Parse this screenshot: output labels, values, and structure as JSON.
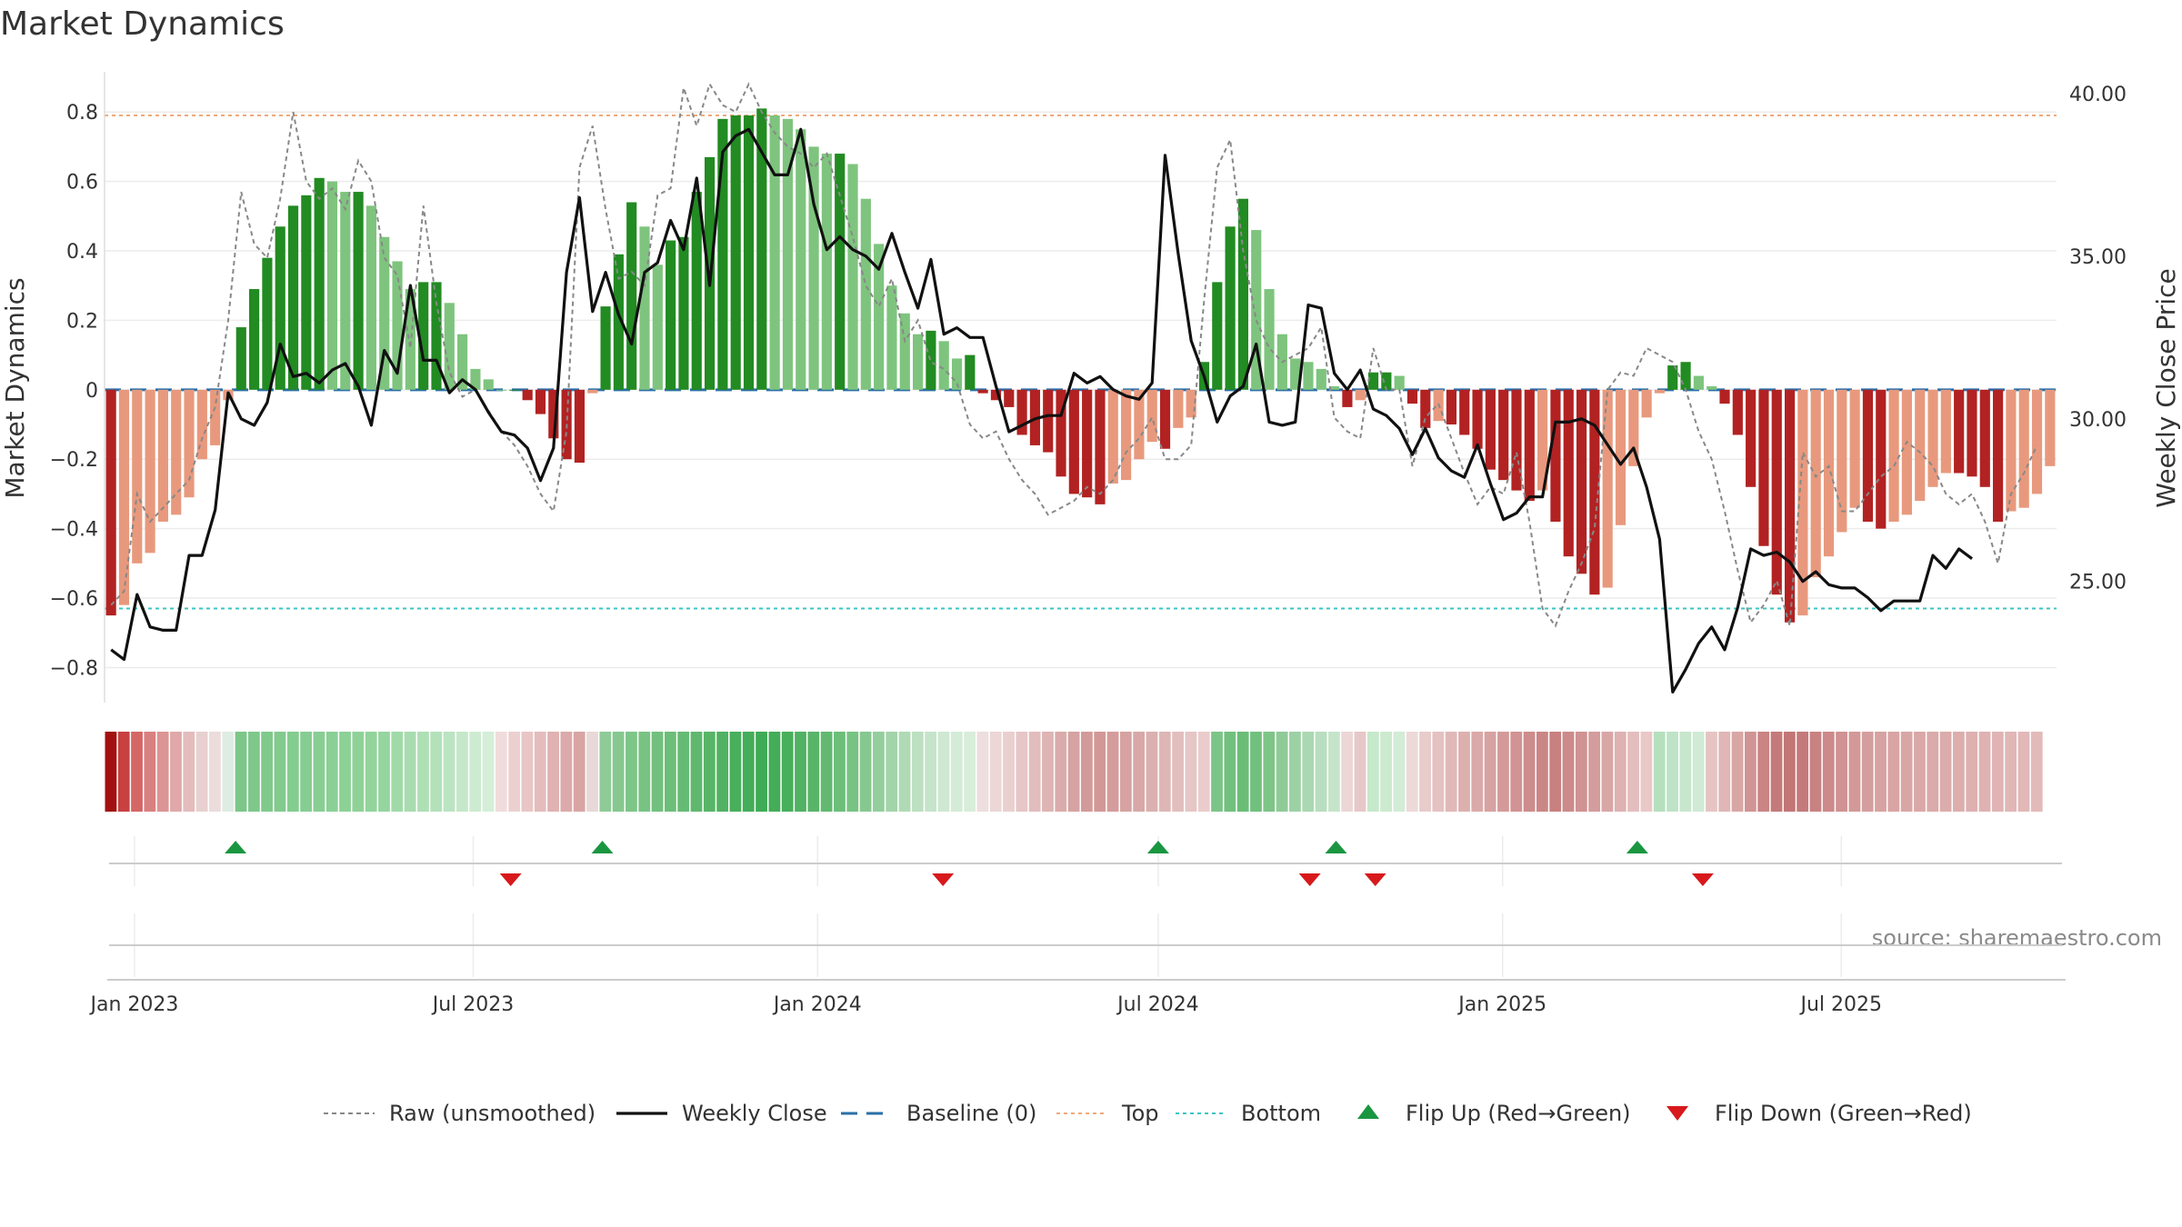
{
  "chart_data": {
    "type": "bar",
    "title": "Market Dynamics",
    "ylabel_left": "Market Dynamics",
    "ylabel_right": "Weekly Close Price",
    "ylim_left": [
      -0.88,
      0.9
    ],
    "ylim_right": [
      21.5,
      40.5
    ],
    "yticks_left": [
      {
        "value": 0.8,
        "label": "0.8"
      },
      {
        "value": 0.6,
        "label": "0.6"
      },
      {
        "value": 0.4,
        "label": "0.4"
      },
      {
        "value": 0.2,
        "label": "0.2"
      },
      {
        "value": 0,
        "label": "0"
      },
      {
        "value": -0.2,
        "label": "−0.2"
      },
      {
        "value": -0.4,
        "label": "−0.4"
      },
      {
        "value": -0.6,
        "label": "−0.6"
      },
      {
        "value": -0.8,
        "label": "−0.8"
      }
    ],
    "yticks_right": [
      {
        "value": 40,
        "label": "40.00"
      },
      {
        "value": 35,
        "label": "35.00"
      },
      {
        "value": 30,
        "label": "30.00"
      },
      {
        "value": 25,
        "label": "25.00"
      }
    ],
    "xticks": [
      {
        "date": "2023-01-01",
        "label": "Jan 2023"
      },
      {
        "date": "2023-07-01",
        "label": "Jul 2023"
      },
      {
        "date": "2024-01-01",
        "label": "Jan 2024"
      },
      {
        "date": "2024-07-01",
        "label": "Jul 2024"
      },
      {
        "date": "2025-01-01",
        "label": "Jan 2025"
      },
      {
        "date": "2025-07-01",
        "label": "Jul 2025"
      }
    ],
    "date_range": [
      "2022-12-16",
      "2025-10-24"
    ],
    "top_level": 0.79,
    "bottom_level": -0.63,
    "baseline": 0,
    "dynamics": [
      -0.65,
      -0.62,
      -0.5,
      -0.47,
      -0.38,
      -0.36,
      -0.31,
      -0.2,
      -0.16,
      -0.03,
      0.18,
      0.29,
      0.38,
      0.47,
      0.53,
      0.56,
      0.61,
      0.6,
      0.57,
      0.57,
      0.53,
      0.44,
      0.37,
      0.29,
      0.31,
      0.31,
      0.25,
      0.16,
      0.06,
      0.03,
      0.0,
      0.0,
      -0.03,
      -0.07,
      -0.14,
      -0.2,
      -0.21,
      -0.01,
      0.24,
      0.39,
      0.54,
      0.47,
      0.36,
      0.43,
      0.44,
      0.57,
      0.67,
      0.78,
      0.79,
      0.79,
      0.81,
      0.79,
      0.78,
      0.75,
      0.7,
      0.68,
      0.68,
      0.65,
      0.55,
      0.42,
      0.3,
      0.22,
      0.16,
      0.17,
      0.14,
      0.09,
      0.1,
      -0.01,
      -0.03,
      -0.05,
      -0.13,
      -0.16,
      -0.18,
      -0.25,
      -0.3,
      -0.31,
      -0.33,
      -0.27,
      -0.26,
      -0.2,
      -0.15,
      -0.17,
      -0.11,
      -0.08,
      0.08,
      0.31,
      0.47,
      0.55,
      0.46,
      0.29,
      0.16,
      0.09,
      0.08,
      0.06,
      0.01,
      -0.05,
      -0.03,
      0.05,
      0.05,
      0.04,
      -0.04,
      -0.11,
      -0.09,
      -0.1,
      -0.13,
      -0.17,
      -0.23,
      -0.26,
      -0.29,
      -0.32,
      -0.29,
      -0.38,
      -0.48,
      -0.53,
      -0.59,
      -0.57,
      -0.39,
      -0.22,
      -0.08,
      -0.01,
      0.07,
      0.08,
      0.04,
      0.01,
      -0.04,
      -0.13,
      -0.28,
      -0.45,
      -0.59,
      -0.67,
      -0.65,
      -0.54,
      -0.48,
      -0.41,
      -0.34,
      -0.38,
      -0.4,
      -0.38,
      -0.36,
      -0.32,
      -0.28,
      -0.24,
      -0.24,
      -0.25,
      -0.28,
      -0.38,
      -0.35,
      -0.34,
      -0.3,
      -0.22
    ],
    "raw": [
      -0.62,
      -0.58,
      -0.3,
      -0.38,
      -0.34,
      -0.3,
      -0.26,
      -0.14,
      -0.05,
      0.2,
      0.57,
      0.42,
      0.38,
      0.55,
      0.8,
      0.6,
      0.55,
      0.58,
      0.52,
      0.66,
      0.6,
      0.38,
      0.33,
      0.12,
      0.53,
      0.25,
      0.05,
      -0.02,
      0.0,
      -0.06,
      -0.12,
      -0.16,
      -0.22,
      -0.3,
      -0.35,
      -0.12,
      0.64,
      0.76,
      0.52,
      0.32,
      0.34,
      0.3,
      0.56,
      0.58,
      0.87,
      0.76,
      0.88,
      0.82,
      0.8,
      0.88,
      0.8,
      0.74,
      0.7,
      0.68,
      0.64,
      0.68,
      0.56,
      0.44,
      0.3,
      0.24,
      0.32,
      0.14,
      0.2,
      0.08,
      0.06,
      0.02,
      -0.1,
      -0.14,
      -0.12,
      -0.2,
      -0.26,
      -0.3,
      -0.36,
      -0.34,
      -0.32,
      -0.28,
      -0.3,
      -0.26,
      -0.18,
      -0.14,
      -0.08,
      -0.2,
      -0.2,
      -0.16,
      0.26,
      0.64,
      0.72,
      0.4,
      0.2,
      0.12,
      0.08,
      0.1,
      0.12,
      0.18,
      -0.08,
      -0.12,
      -0.14,
      0.12,
      0.0,
      0.0,
      -0.22,
      -0.08,
      -0.04,
      -0.14,
      -0.24,
      -0.33,
      -0.28,
      -0.3,
      -0.18,
      -0.38,
      -0.63,
      -0.68,
      -0.58,
      -0.5,
      -0.4,
      0.0,
      0.05,
      0.04,
      0.12,
      0.1,
      0.08,
      0.0,
      -0.12,
      -0.2,
      -0.35,
      -0.52,
      -0.67,
      -0.62,
      -0.55,
      -0.68,
      -0.18,
      -0.25,
      -0.22,
      -0.35,
      -0.35,
      -0.3,
      -0.25,
      -0.22,
      -0.15,
      -0.18,
      -0.22,
      -0.3,
      -0.33,
      -0.3,
      -0.38,
      -0.5,
      -0.3,
      -0.24,
      -0.16
    ],
    "close": [
      22.9,
      22.6,
      24.6,
      23.6,
      23.5,
      23.5,
      25.8,
      25.8,
      27.2,
      30.8,
      30.0,
      29.8,
      30.5,
      32.3,
      31.3,
      31.4,
      31.1,
      31.5,
      31.7,
      31.0,
      29.8,
      32.1,
      31.4,
      34.1,
      31.8,
      31.8,
      30.8,
      31.2,
      30.9,
      30.2,
      29.6,
      29.5,
      29.1,
      28.1,
      29.1,
      34.5,
      36.8,
      33.3,
      34.5,
      33.2,
      32.3,
      34.5,
      34.8,
      36.1,
      35.2,
      37.4,
      34.1,
      38.2,
      38.7,
      38.9,
      38.2,
      37.5,
      37.5,
      38.9,
      36.6,
      35.2,
      35.6,
      35.2,
      35.0,
      34.6,
      35.7,
      34.5,
      33.4,
      34.9,
      32.6,
      32.8,
      32.5,
      32.5,
      31.0,
      29.6,
      29.8,
      30.0,
      30.1,
      30.1,
      31.4,
      31.1,
      31.3,
      30.9,
      30.7,
      30.6,
      31.1,
      38.1,
      35.1,
      32.4,
      31.3,
      29.9,
      30.7,
      31.0,
      32.3,
      29.9,
      29.8,
      29.9,
      33.5,
      33.4,
      31.4,
      30.9,
      31.5,
      30.3,
      30.1,
      29.7,
      28.9,
      29.7,
      28.8,
      28.4,
      28.2,
      29.2,
      28.0,
      26.9,
      27.1,
      27.6,
      27.6,
      29.9,
      29.9,
      30.0,
      29.8,
      29.2,
      28.6,
      29.1,
      27.9,
      26.3,
      21.6,
      22.3,
      23.1,
      23.6,
      22.9,
      24.2,
      26.0,
      25.8,
      25.9,
      25.6,
      25.0,
      25.3,
      24.9,
      24.8,
      24.8,
      24.5,
      24.1,
      24.4,
      24.4,
      24.4,
      25.8,
      25.4,
      26.0,
      25.7
    ],
    "zone_colors": [
      "#a31010",
      "#c84040",
      "#d56666",
      "#d98080",
      "#dc9494",
      "#e0a8a8",
      "#e4bcbc",
      "#e8d0d0",
      "#ecdcdc",
      "#dfece3",
      "#7cc688",
      "#7ec88a",
      "#80c98c",
      "#82ca8e",
      "#84cc90",
      "#86cd92",
      "#88ce94",
      "#8ad095",
      "#8cd196",
      "#8fd298",
      "#92d49b",
      "#95d59e",
      "#a0daa8",
      "#a8dcb0",
      "#aedfb5",
      "#b3e1ba",
      "#bbe4c1",
      "#c4e8c9",
      "#cdebd1",
      "#d5eed8",
      "#f0dcdc",
      "#ecd0d0",
      "#e8c6c6",
      "#e4bcbc",
      "#e0b2b2",
      "#dcaaaa",
      "#d8a4a4",
      "#e8d8d8",
      "#8ecb97",
      "#86c890",
      "#7ec588",
      "#78c383",
      "#72c07e",
      "#6cbe79",
      "#66bb74",
      "#5fb86e",
      "#58b568",
      "#50b262",
      "#48af5c",
      "#44ad59",
      "#40ab56",
      "#44ad59",
      "#48af5c",
      "#50b262",
      "#58b568",
      "#62b96f",
      "#6cbe79",
      "#78c383",
      "#86c890",
      "#94ce9d",
      "#a2d4aa",
      "#b0dab6",
      "#bce0c1",
      "#c6e4ca",
      "#cee8d2",
      "#d4ebd7",
      "#d8edda",
      "#eedede",
      "#ecd6d6",
      "#eacfcf",
      "#e6c6c6",
      "#e2bdbd",
      "#deb4b4",
      "#daabab",
      "#d6a2a2",
      "#d39a9a",
      "#d29898",
      "#d49c9c",
      "#d6a2a2",
      "#d8a8a8",
      "#dbb0b0",
      "#deb6b6",
      "#e2bebe",
      "#e6c6c6",
      "#eacccc",
      "#7cc588",
      "#72c07e",
      "#6abd77",
      "#72c07e",
      "#7ec588",
      "#8ecb97",
      "#9cd1a5",
      "#aad8b2",
      "#b8debf",
      "#c6e4ca",
      "#ecd6d6",
      "#e6c8c8",
      "#c6e8cb",
      "#cceace",
      "#d2ecd5",
      "#eed9d9",
      "#e8cbcb",
      "#e4c2c2",
      "#e0b8b8",
      "#ddb0b0",
      "#daa9a9",
      "#d7a2a2",
      "#d49a9a",
      "#d19393",
      "#ce8c8c",
      "#cb8686",
      "#c88080",
      "#cc8a8a",
      "#d09292",
      "#d49c9c",
      "#d9a6a6",
      "#deb2b2",
      "#e4bebe",
      "#e9c8c8",
      "#b6dfbe",
      "#bfe3c6",
      "#c8e6cd",
      "#d0ead5",
      "#e6c4c4",
      "#e0b6b6",
      "#d9a6a6",
      "#d19494",
      "#ca8484",
      "#c47a7a",
      "#c27676",
      "#c47a7a",
      "#c88282",
      "#cc8a8a",
      "#d09292",
      "#d39898",
      "#d59e9e",
      "#d7a2a2",
      "#d8a4a4",
      "#d9a6a6",
      "#daa8a8",
      "#dbaaaa",
      "#dcacac",
      "#ddaeae",
      "#deb0b0",
      "#dfb2b2",
      "#e0b4b4",
      "#e1b6b6",
      "#e2b8b8",
      "#e3baba"
    ],
    "flip_up_dates": [
      "2023-02-24",
      "2023-09-08",
      "2024-07-01",
      "2024-10-04",
      "2025-03-14"
    ],
    "flip_down_dates": [
      "2023-07-21",
      "2024-03-08",
      "2024-09-20",
      "2024-10-25",
      "2025-04-18"
    ],
    "colors": {
      "green_strong": "#228b22",
      "green_light": "#7ec47e",
      "red_strong": "#b22222",
      "red_light": "#e8997d",
      "close_line": "#111111",
      "raw_line": "#888888",
      "baseline": "#2a6fa8",
      "top": "#f0a97a",
      "bottom": "#3cc5c5",
      "flip_up": "#1a9641",
      "flip_down": "#d7191c"
    },
    "legend": [
      {
        "key": "raw",
        "label": "Raw (unsmoothed)"
      },
      {
        "key": "close",
        "label": "Weekly Close"
      },
      {
        "key": "baseline",
        "label": "Baseline (0)"
      },
      {
        "key": "top",
        "label": "Top"
      },
      {
        "key": "bottom",
        "label": "Bottom"
      },
      {
        "key": "flip_up",
        "label": "Flip Up (Red→Green)"
      },
      {
        "key": "flip_down",
        "label": "Flip Down (Green→Red)"
      }
    ],
    "legend_position": "bottom-center",
    "source": "source: sharemaestro.com"
  }
}
